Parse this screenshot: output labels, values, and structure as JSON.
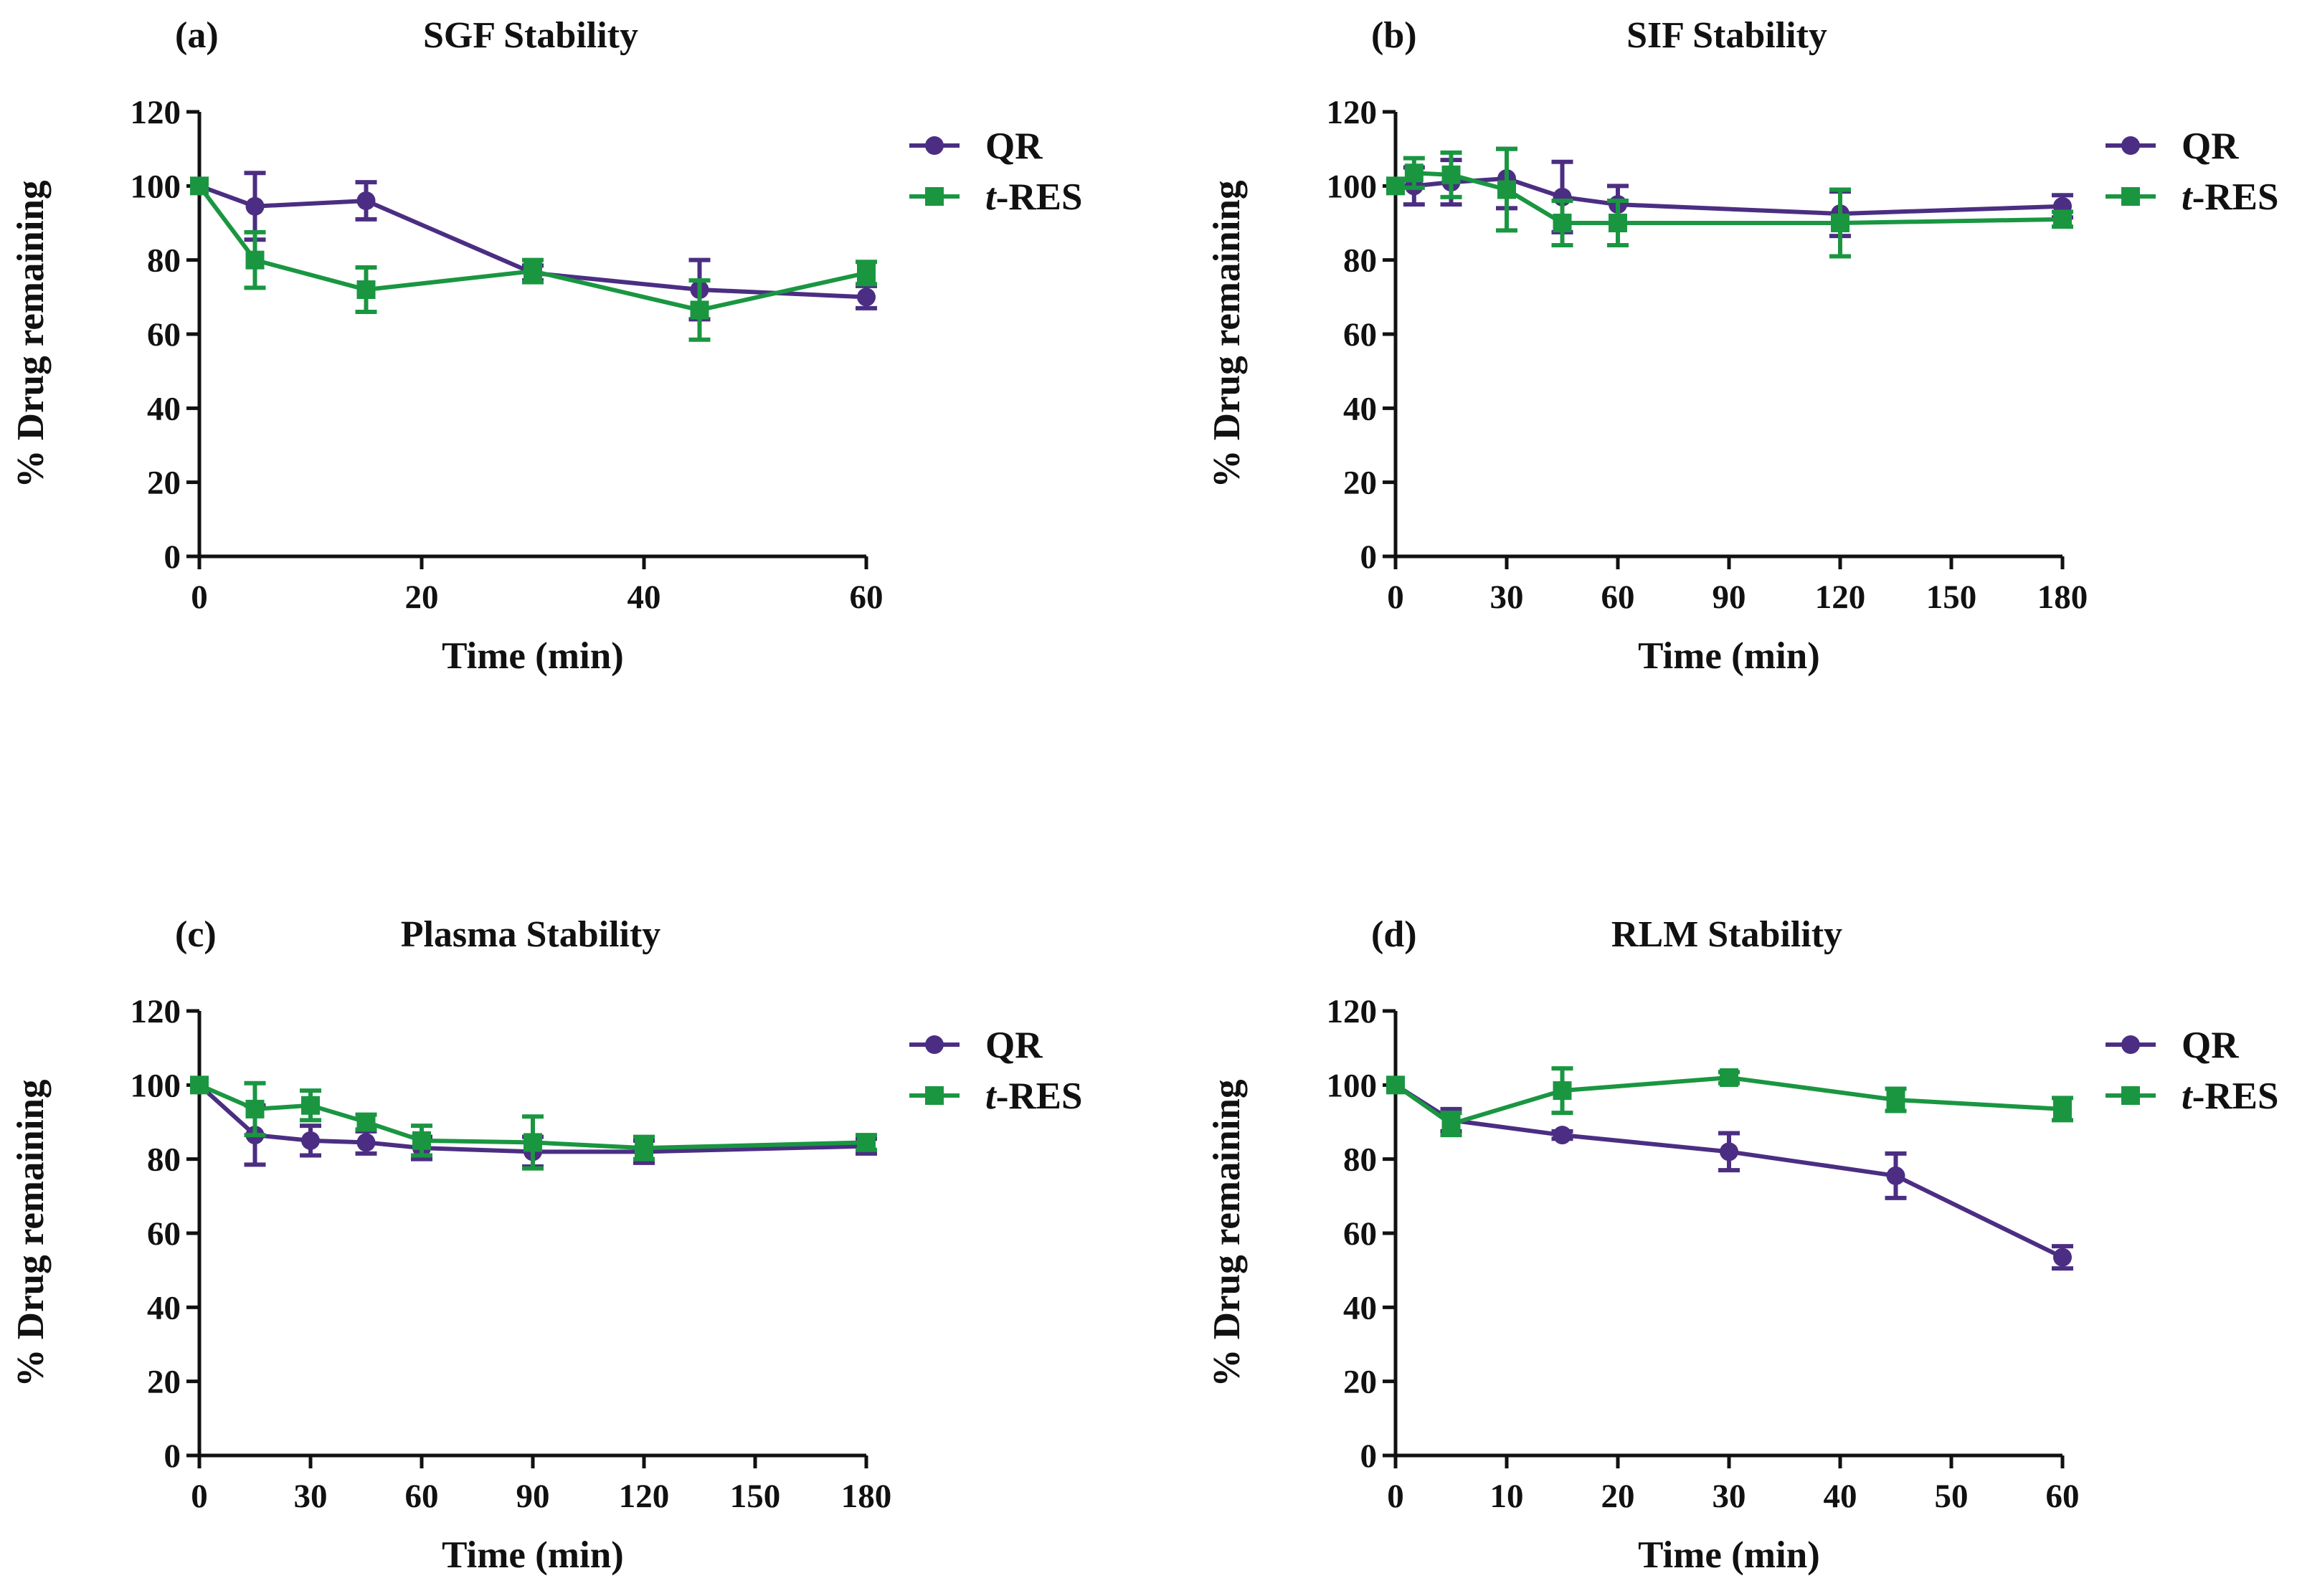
{
  "colors": {
    "qr": "#4b2e83",
    "tres": "#1a9641",
    "axis": "#111111"
  },
  "legend_icons": {
    "qr": "filled-circle-marker",
    "tres": "filled-square-marker"
  },
  "chart_data": [
    {
      "type": "line",
      "panel_label": "(a)",
      "title": "SGF Stability",
      "xlabel": "Time (min)",
      "ylabel": "% Drug remaining",
      "xlim": [
        0,
        60
      ],
      "ylim": [
        0,
        120
      ],
      "xticks": [
        0,
        20,
        40,
        60
      ],
      "yticks": [
        0,
        20,
        40,
        60,
        80,
        100,
        120
      ],
      "legend": {
        "position": "top-right",
        "entries": [
          {
            "key": "qr",
            "prefix": "",
            "italic": "",
            "suffix": "QR"
          },
          {
            "key": "tres",
            "prefix": "",
            "italic": "t",
            "suffix": "-RES"
          }
        ]
      },
      "series": [
        {
          "name": "QR",
          "key": "qr",
          "marker": "circle",
          "x": [
            0,
            5,
            15,
            30,
            45,
            60
          ],
          "y": [
            100,
            94.5,
            96,
            76.5,
            72,
            70
          ],
          "err": [
            0,
            9,
            5,
            2,
            8,
            3
          ]
        },
        {
          "name": "t-RES",
          "key": "tres",
          "marker": "square",
          "x": [
            0,
            5,
            15,
            30,
            45,
            60
          ],
          "y": [
            100,
            80,
            72,
            77,
            66.5,
            76.5
          ],
          "err": [
            0,
            7.5,
            6,
            3,
            8,
            3
          ]
        }
      ]
    },
    {
      "type": "line",
      "panel_label": "(b)",
      "title": "SIF Stability",
      "xlabel": "Time (min)",
      "ylabel": "% Drug remaining",
      "xlim": [
        0,
        180
      ],
      "ylim": [
        0,
        120
      ],
      "xticks": [
        0,
        30,
        60,
        90,
        120,
        150,
        180
      ],
      "yticks": [
        0,
        20,
        40,
        60,
        80,
        100,
        120
      ],
      "legend": {
        "position": "top-right",
        "entries": [
          {
            "key": "qr",
            "prefix": "",
            "italic": "",
            "suffix": "QR"
          },
          {
            "key": "tres",
            "prefix": "",
            "italic": "t",
            "suffix": "-RES"
          }
        ]
      },
      "series": [
        {
          "name": "QR",
          "key": "qr",
          "marker": "circle",
          "x": [
            0,
            5,
            15,
            30,
            45,
            60,
            120,
            180
          ],
          "y": [
            100,
            100,
            101,
            102,
            97,
            95,
            92.5,
            94.5
          ],
          "err": [
            0,
            5,
            6,
            8,
            9.5,
            5,
            6,
            3
          ]
        },
        {
          "name": "t-RES",
          "key": "tres",
          "marker": "square",
          "x": [
            0,
            5,
            15,
            30,
            45,
            60,
            120,
            180
          ],
          "y": [
            100,
            103.5,
            103,
            99,
            90,
            90,
            90,
            91
          ],
          "err": [
            0,
            4,
            6,
            11,
            6,
            6,
            9,
            2
          ]
        }
      ]
    },
    {
      "type": "line",
      "panel_label": "(c)",
      "title": "Plasma Stability",
      "xlabel": "Time (min)",
      "ylabel": "% Drug remaining",
      "xlim": [
        0,
        180
      ],
      "ylim": [
        0,
        120
      ],
      "xticks": [
        0,
        30,
        60,
        90,
        120,
        150,
        180
      ],
      "yticks": [
        0,
        20,
        40,
        60,
        80,
        100,
        120
      ],
      "legend": {
        "position": "top-right",
        "entries": [
          {
            "key": "qr",
            "prefix": "",
            "italic": "",
            "suffix": "QR"
          },
          {
            "key": "tres",
            "prefix": "",
            "italic": "t",
            "suffix": "-RES"
          }
        ]
      },
      "series": [
        {
          "name": "QR",
          "key": "qr",
          "marker": "circle",
          "x": [
            0,
            15,
            30,
            45,
            60,
            90,
            120,
            180
          ],
          "y": [
            100,
            86.5,
            85,
            84.5,
            83,
            82,
            82,
            83.5
          ],
          "err": [
            0,
            8,
            4,
            3,
            3,
            4,
            3,
            2
          ]
        },
        {
          "name": "t-RES",
          "key": "tres",
          "marker": "square",
          "x": [
            0,
            15,
            30,
            45,
            60,
            90,
            120,
            180
          ],
          "y": [
            100,
            93.5,
            94.5,
            90,
            85,
            84.5,
            83,
            84.5
          ],
          "err": [
            0,
            7,
            4,
            2,
            4,
            7,
            3,
            2
          ]
        }
      ]
    },
    {
      "type": "line",
      "panel_label": "(d)",
      "title": "RLM Stability",
      "xlabel": "Time (min)",
      "ylabel": "% Drug remaining",
      "xlim": [
        0,
        60
      ],
      "ylim": [
        0,
        120
      ],
      "xticks": [
        0,
        10,
        20,
        30,
        40,
        50,
        60
      ],
      "yticks": [
        0,
        20,
        40,
        60,
        80,
        100,
        120
      ],
      "legend": {
        "position": "top-right",
        "entries": [
          {
            "key": "qr",
            "prefix": "",
            "italic": "",
            "suffix": "QR"
          },
          {
            "key": "tres",
            "prefix": "",
            "italic": "t",
            "suffix": "-RES"
          }
        ]
      },
      "series": [
        {
          "name": "QR",
          "key": "qr",
          "marker": "circle",
          "x": [
            0,
            5,
            15,
            30,
            45,
            60
          ],
          "y": [
            100,
            90.5,
            86.5,
            82,
            75.5,
            53.5
          ],
          "err": [
            0,
            3,
            1,
            5,
            6,
            3
          ]
        },
        {
          "name": "t-RES",
          "key": "tres",
          "marker": "square",
          "x": [
            0,
            5,
            15,
            30,
            45,
            60
          ],
          "y": [
            100,
            89.5,
            98.5,
            102,
            96,
            93.5
          ],
          "err": [
            0,
            3,
            6,
            1.5,
            3,
            3
          ]
        }
      ]
    }
  ]
}
